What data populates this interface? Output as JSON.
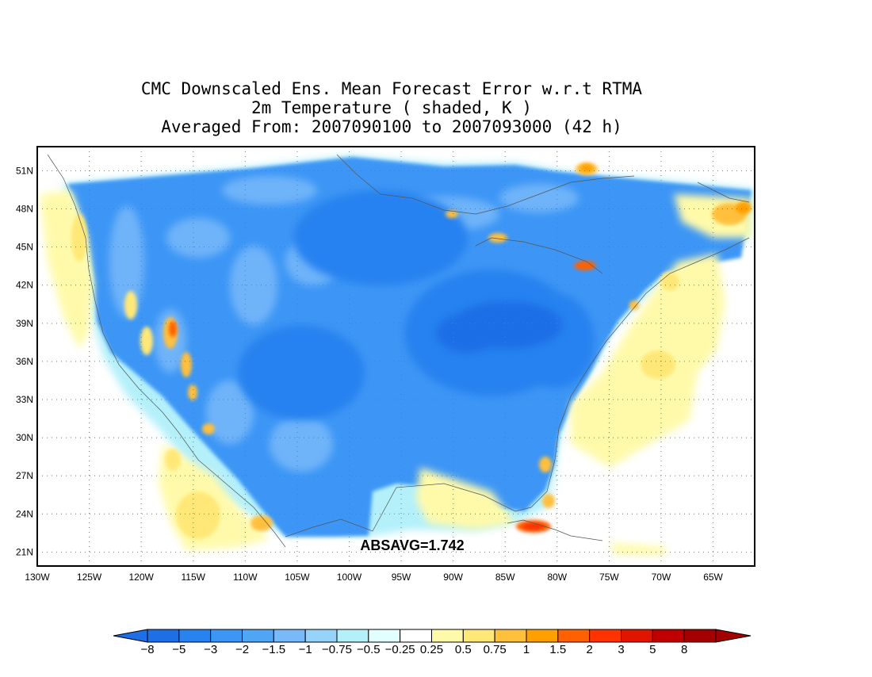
{
  "title": {
    "line1": "CMC Downscaled Ens. Mean Forecast Error w.r.t RTMA",
    "line2": "2m Temperature ( shaded, K )",
    "line3": "Averaged From: 2007090100 to 2007093000 (42 h)"
  },
  "annotation": "ABSAVG=1.742",
  "map": {
    "lon_range": [
      -130,
      -61
    ],
    "lat_range": [
      19.9,
      52.9
    ],
    "lon_ticks": [
      "130W",
      "125W",
      "120W",
      "115W",
      "110W",
      "105W",
      "100W",
      "95W",
      "90W",
      "85W",
      "80W",
      "75W",
      "70W",
      "65W"
    ],
    "lat_ticks": [
      "51N",
      "48N",
      "45N",
      "42N",
      "39N",
      "36N",
      "33N",
      "30N",
      "27N",
      "24N",
      "21N"
    ],
    "grid": "dotted"
  },
  "colorbar": {
    "labels": [
      "-8",
      "-5",
      "-3",
      "-2",
      "-1.5",
      "-1",
      "-0.75",
      "-0.5",
      "-0.25",
      "0.25",
      "0.5",
      "0.75",
      "1",
      "1.5",
      "2",
      "3",
      "5",
      "8"
    ],
    "colors": [
      "#1e6ee6",
      "#2882f0",
      "#3c96f5",
      "#50a5f5",
      "#78b9fa",
      "#96d2fa",
      "#b4f0fa",
      "#e1ffff",
      "#ffffff",
      "#fffaaa",
      "#ffe878",
      "#ffc03c",
      "#ffa000",
      "#ff6000",
      "#ff3200",
      "#e11400",
      "#c00000",
      "#a50000"
    ],
    "below_color": "#1e6ee6",
    "above_color": "#a50000"
  }
}
